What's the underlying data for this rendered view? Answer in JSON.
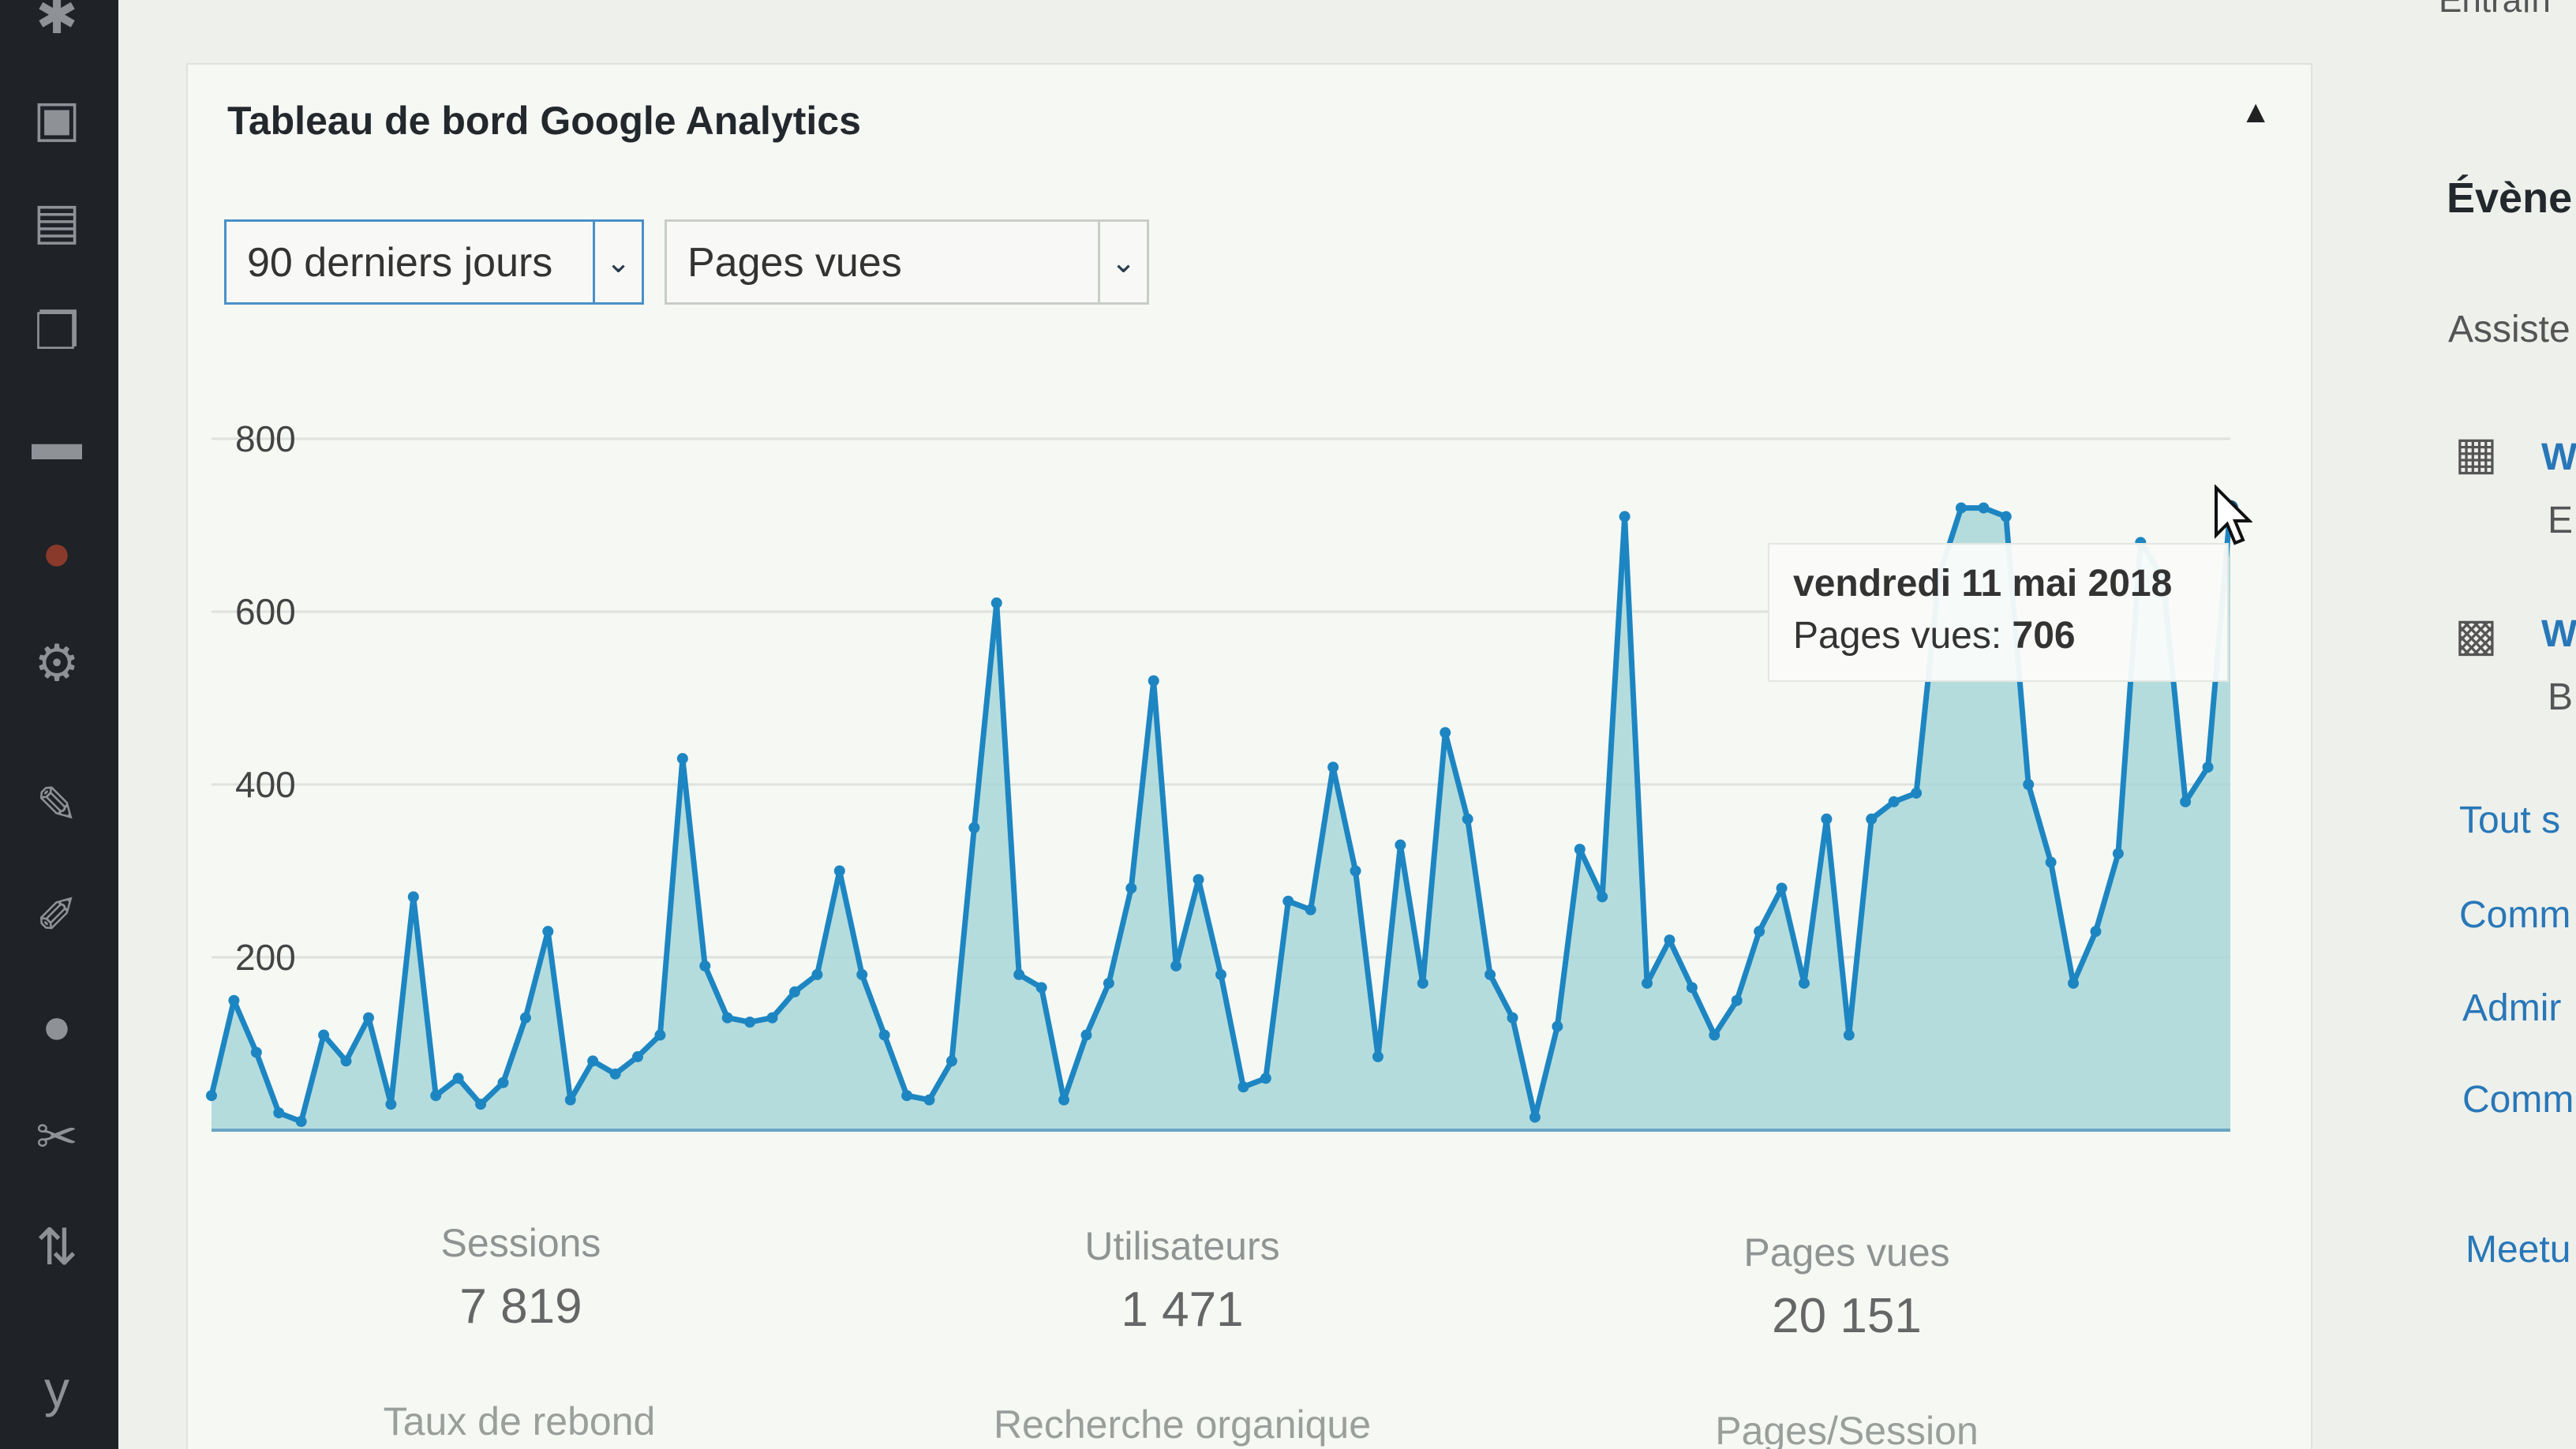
{
  "widget": {
    "title": "Tableau de bord Google Analytics",
    "collapse_icon": "triangle-up-icon"
  },
  "filters": {
    "period": "90 derniers jours",
    "metric": "Pages vues"
  },
  "chart_data": {
    "type": "area",
    "ylabel": "",
    "xlabel": "",
    "y_ticks": [
      "800",
      "600",
      "400",
      "200"
    ],
    "ylim": [
      0,
      800
    ],
    "grid": true,
    "series": [
      {
        "values": [
          40,
          150,
          90,
          20,
          10,
          110,
          80,
          130,
          30,
          270,
          40,
          60,
          30,
          55,
          130,
          230,
          35,
          80,
          65,
          85,
          110,
          430,
          190,
          130,
          125,
          130,
          160,
          180,
          300,
          180,
          110,
          40,
          35,
          80,
          350,
          610,
          180,
          165,
          35,
          110,
          170,
          280,
          520,
          190,
          290,
          180,
          50,
          60,
          265,
          255,
          420,
          300,
          85,
          330,
          170,
          460,
          360,
          180,
          130,
          15,
          120,
          325,
          270,
          710,
          170,
          220,
          165,
          110,
          150,
          230,
          280,
          170,
          360,
          110,
          360,
          380,
          390,
          640,
          720,
          720,
          710,
          400,
          310,
          170,
          230,
          320,
          680,
          640,
          380,
          420,
          720
        ]
      }
    ],
    "highlight": {
      "date": "vendredi 11 mai 2018",
      "label": "Pages vues:",
      "value": "706"
    }
  },
  "stats": {
    "sessions": {
      "label": "Sessions",
      "value": "7 819"
    },
    "users": {
      "label": "Utilisateurs",
      "value": "1 471"
    },
    "pageviews": {
      "label": "Pages vues",
      "value": "20 151"
    },
    "bounce": {
      "label": "Taux de rebond"
    },
    "organic": {
      "label": "Recherche organique"
    },
    "pps": {
      "label": "Pages/Session"
    }
  },
  "right": {
    "top": "Entraîn",
    "events": "Évène",
    "assist": "Assiste",
    "item1": "W",
    "item1_sub": "E",
    "item2": "W",
    "item2_sub": "B",
    "tout": "Tout s",
    "comm1": "Comm",
    "admin": "Admir",
    "comm2": "Comm",
    "meet": "Meetu"
  }
}
